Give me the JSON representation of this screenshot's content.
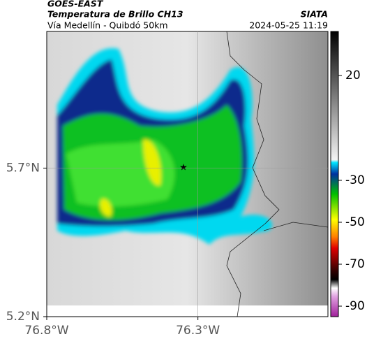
{
  "header": {
    "satellite": "GOES-EAST",
    "product": "Temperatura de Brillo CH13",
    "source": "SIATA",
    "route": "Vía Medellín - Quibdó 50km",
    "datetime": "2024-05-25 11:19"
  },
  "map": {
    "xlim": [
      -76.8,
      -75.87
    ],
    "ylim": [
      5.2,
      6.16
    ],
    "xticks": [
      {
        "value": -76.8,
        "label": "76.8°W"
      },
      {
        "value": -76.3,
        "label": "76.3°W"
      }
    ],
    "yticks": [
      {
        "value": 5.2,
        "label": "5.2°N"
      },
      {
        "value": 5.7,
        "label": "5.7°N"
      }
    ],
    "grid": true
  },
  "colorbar": {
    "lim": [
      -95,
      41
    ],
    "ticks": [
      20,
      -30,
      -50,
      -70,
      -90
    ]
  }
}
